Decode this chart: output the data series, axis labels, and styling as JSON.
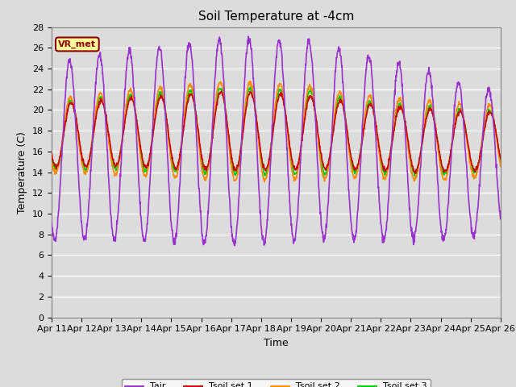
{
  "title": "Soil Temperature at -4cm",
  "xlabel": "Time",
  "ylabel": "Temperature (C)",
  "ylim": [
    0,
    28
  ],
  "xlim": [
    0,
    15
  ],
  "yticks": [
    0,
    2,
    4,
    6,
    8,
    10,
    12,
    14,
    16,
    18,
    20,
    22,
    24,
    26,
    28
  ],
  "xtick_labels": [
    "Apr 11",
    "Apr 12",
    "Apr 13",
    "Apr 14",
    "Apr 15",
    "Apr 16",
    "Apr 17",
    "Apr 18",
    "Apr 19",
    "Apr 20",
    "Apr 21",
    "Apr 22",
    "Apr 23",
    "Apr 24",
    "Apr 25",
    "Apr 26"
  ],
  "colors": {
    "Tair": "#9932CC",
    "Tsoil1": "#CC0000",
    "Tsoil2": "#FF8C00",
    "Tsoil3": "#00CC00"
  },
  "legend_labels": [
    "Tair",
    "Tsoil set 1",
    "Tsoil set 2",
    "Tsoil set 3"
  ],
  "annotation_text": "VR_met",
  "annotation_color": "#8B0000",
  "annotation_bg": "#FFFF99",
  "bg_color": "#DCDCDC",
  "plot_bg": "#DCDCDC",
  "line_width": 1.2,
  "title_fontsize": 11,
  "axis_fontsize": 9,
  "tick_fontsize": 8,
  "n_points": 1440,
  "days": 15
}
